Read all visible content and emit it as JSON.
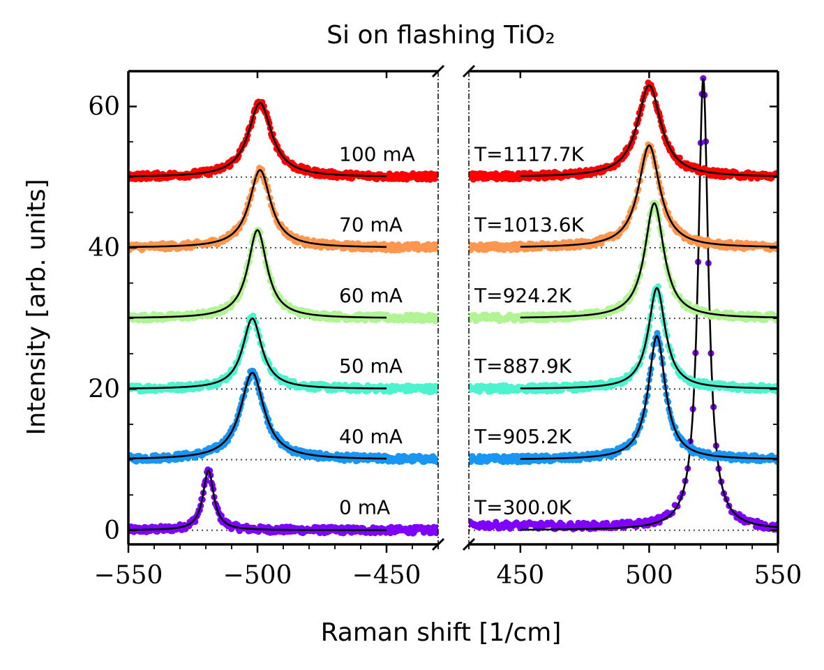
{
  "chart_data": {
    "type": "scatter",
    "title": "Si on flashing TiO₂",
    "xlabel": "Raman shift [1/cm]",
    "ylabel": "Intensity [arb. units]",
    "broken_x_axis": true,
    "left_panel": {
      "xlim": [
        -550,
        -430
      ],
      "ticks": [
        -550,
        -500,
        -450
      ],
      "tick_labels": [
        "−550",
        "−500",
        "−450"
      ]
    },
    "right_panel": {
      "xlim": [
        430,
        550
      ],
      "ticks": [
        450,
        500,
        550
      ],
      "tick_labels": [
        "450",
        "500",
        "550"
      ]
    },
    "ylim": [
      -2,
      65
    ],
    "yticks": [
      0,
      20,
      40,
      60
    ],
    "ytick_labels": [
      "0",
      "20",
      "40",
      "60"
    ],
    "grid": false,
    "fit_line_color": "#000000",
    "baseline_style": "dotted",
    "series": [
      {
        "current_label": "0 mA",
        "temperature_label": "T=300.0K",
        "color": "#7f00ff",
        "offset": 0,
        "left_peak": {
          "center": -519,
          "height": 8.5,
          "hwhm": 2.5
        },
        "right_peak": {
          "center": 521,
          "height": 64,
          "hwhm": 2.4
        }
      },
      {
        "current_label": "40 mA",
        "temperature_label": "T=905.2K",
        "color": "#1996f3",
        "offset": 10,
        "left_peak": {
          "center": -502,
          "height": 12.3,
          "hwhm": 5.5
        },
        "right_peak": {
          "center": 503,
          "height": 17.5,
          "hwhm": 4.0
        }
      },
      {
        "current_label": "50 mA",
        "temperature_label": "T=887.9K",
        "color": "#4df3ce",
        "offset": 20,
        "left_peak": {
          "center": -502,
          "height": 10.0,
          "hwhm": 4.5
        },
        "right_peak": {
          "center": 503,
          "height": 14.3,
          "hwhm": 4.0
        }
      },
      {
        "current_label": "60 mA",
        "temperature_label": "T=924.2K",
        "color": "#b2f396",
        "offset": 30,
        "left_peak": {
          "center": -500,
          "height": 12.5,
          "hwhm": 4.5
        },
        "right_peak": {
          "center": 502,
          "height": 16.3,
          "hwhm": 4.5
        }
      },
      {
        "current_label": "70 mA",
        "temperature_label": "T=1013.6K",
        "color": "#ff964f",
        "offset": 40,
        "left_peak": {
          "center": -499,
          "height": 11.0,
          "hwhm": 5.0
        },
        "right_peak": {
          "center": 500,
          "height": 14.5,
          "hwhm": 5.0
        }
      },
      {
        "current_label": "100 mA",
        "temperature_label": "T=1117.7K",
        "color": "#ff0000",
        "offset": 50,
        "left_peak": {
          "center": -499,
          "height": 10.5,
          "hwhm": 5.5
        },
        "right_peak": {
          "center": 500,
          "height": 13.0,
          "hwhm": 5.5
        }
      }
    ]
  }
}
